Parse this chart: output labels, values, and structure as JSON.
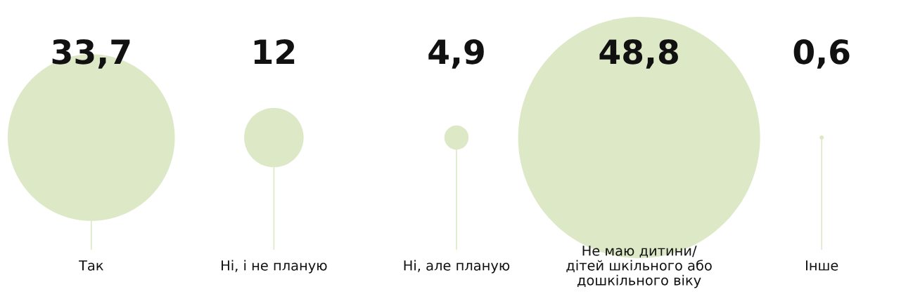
{
  "chart_data": {
    "type": "other",
    "categories": [
      "Так",
      "Ні, і не планую",
      "Ні, але планую",
      "Не маю дитини/\nдітей шкільного або\nдошкільного віку",
      "Інше"
    ],
    "values": [
      33.7,
      12,
      4.9,
      48.8,
      0.6
    ],
    "value_labels": [
      "33,7",
      "12",
      "4,9",
      "48,8",
      "0,6"
    ],
    "color": "#dde9c6"
  }
}
